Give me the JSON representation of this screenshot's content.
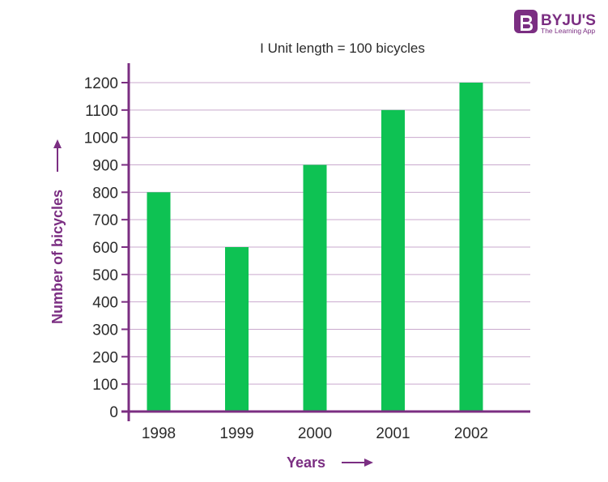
{
  "brand": {
    "name": "BYJU'S",
    "tagline": "The Learning App",
    "color": "#7b2e82"
  },
  "chart_data": {
    "type": "bar",
    "title": "",
    "subtitle": "I Unit length = 100 bicycles",
    "xlabel": "Years",
    "ylabel": "Number of bicycles",
    "categories": [
      "1998",
      "1999",
      "2000",
      "2001",
      "2002"
    ],
    "values": [
      800,
      600,
      900,
      1100,
      1200
    ],
    "ylim": [
      0,
      1200
    ],
    "yticks": [
      0,
      100,
      200,
      300,
      400,
      500,
      600,
      700,
      800,
      900,
      1000,
      1100,
      1200
    ],
    "grid": true,
    "bar_color": "#0ec253",
    "axis_color": "#7b2e82",
    "grid_color": "#c9a9cd"
  }
}
